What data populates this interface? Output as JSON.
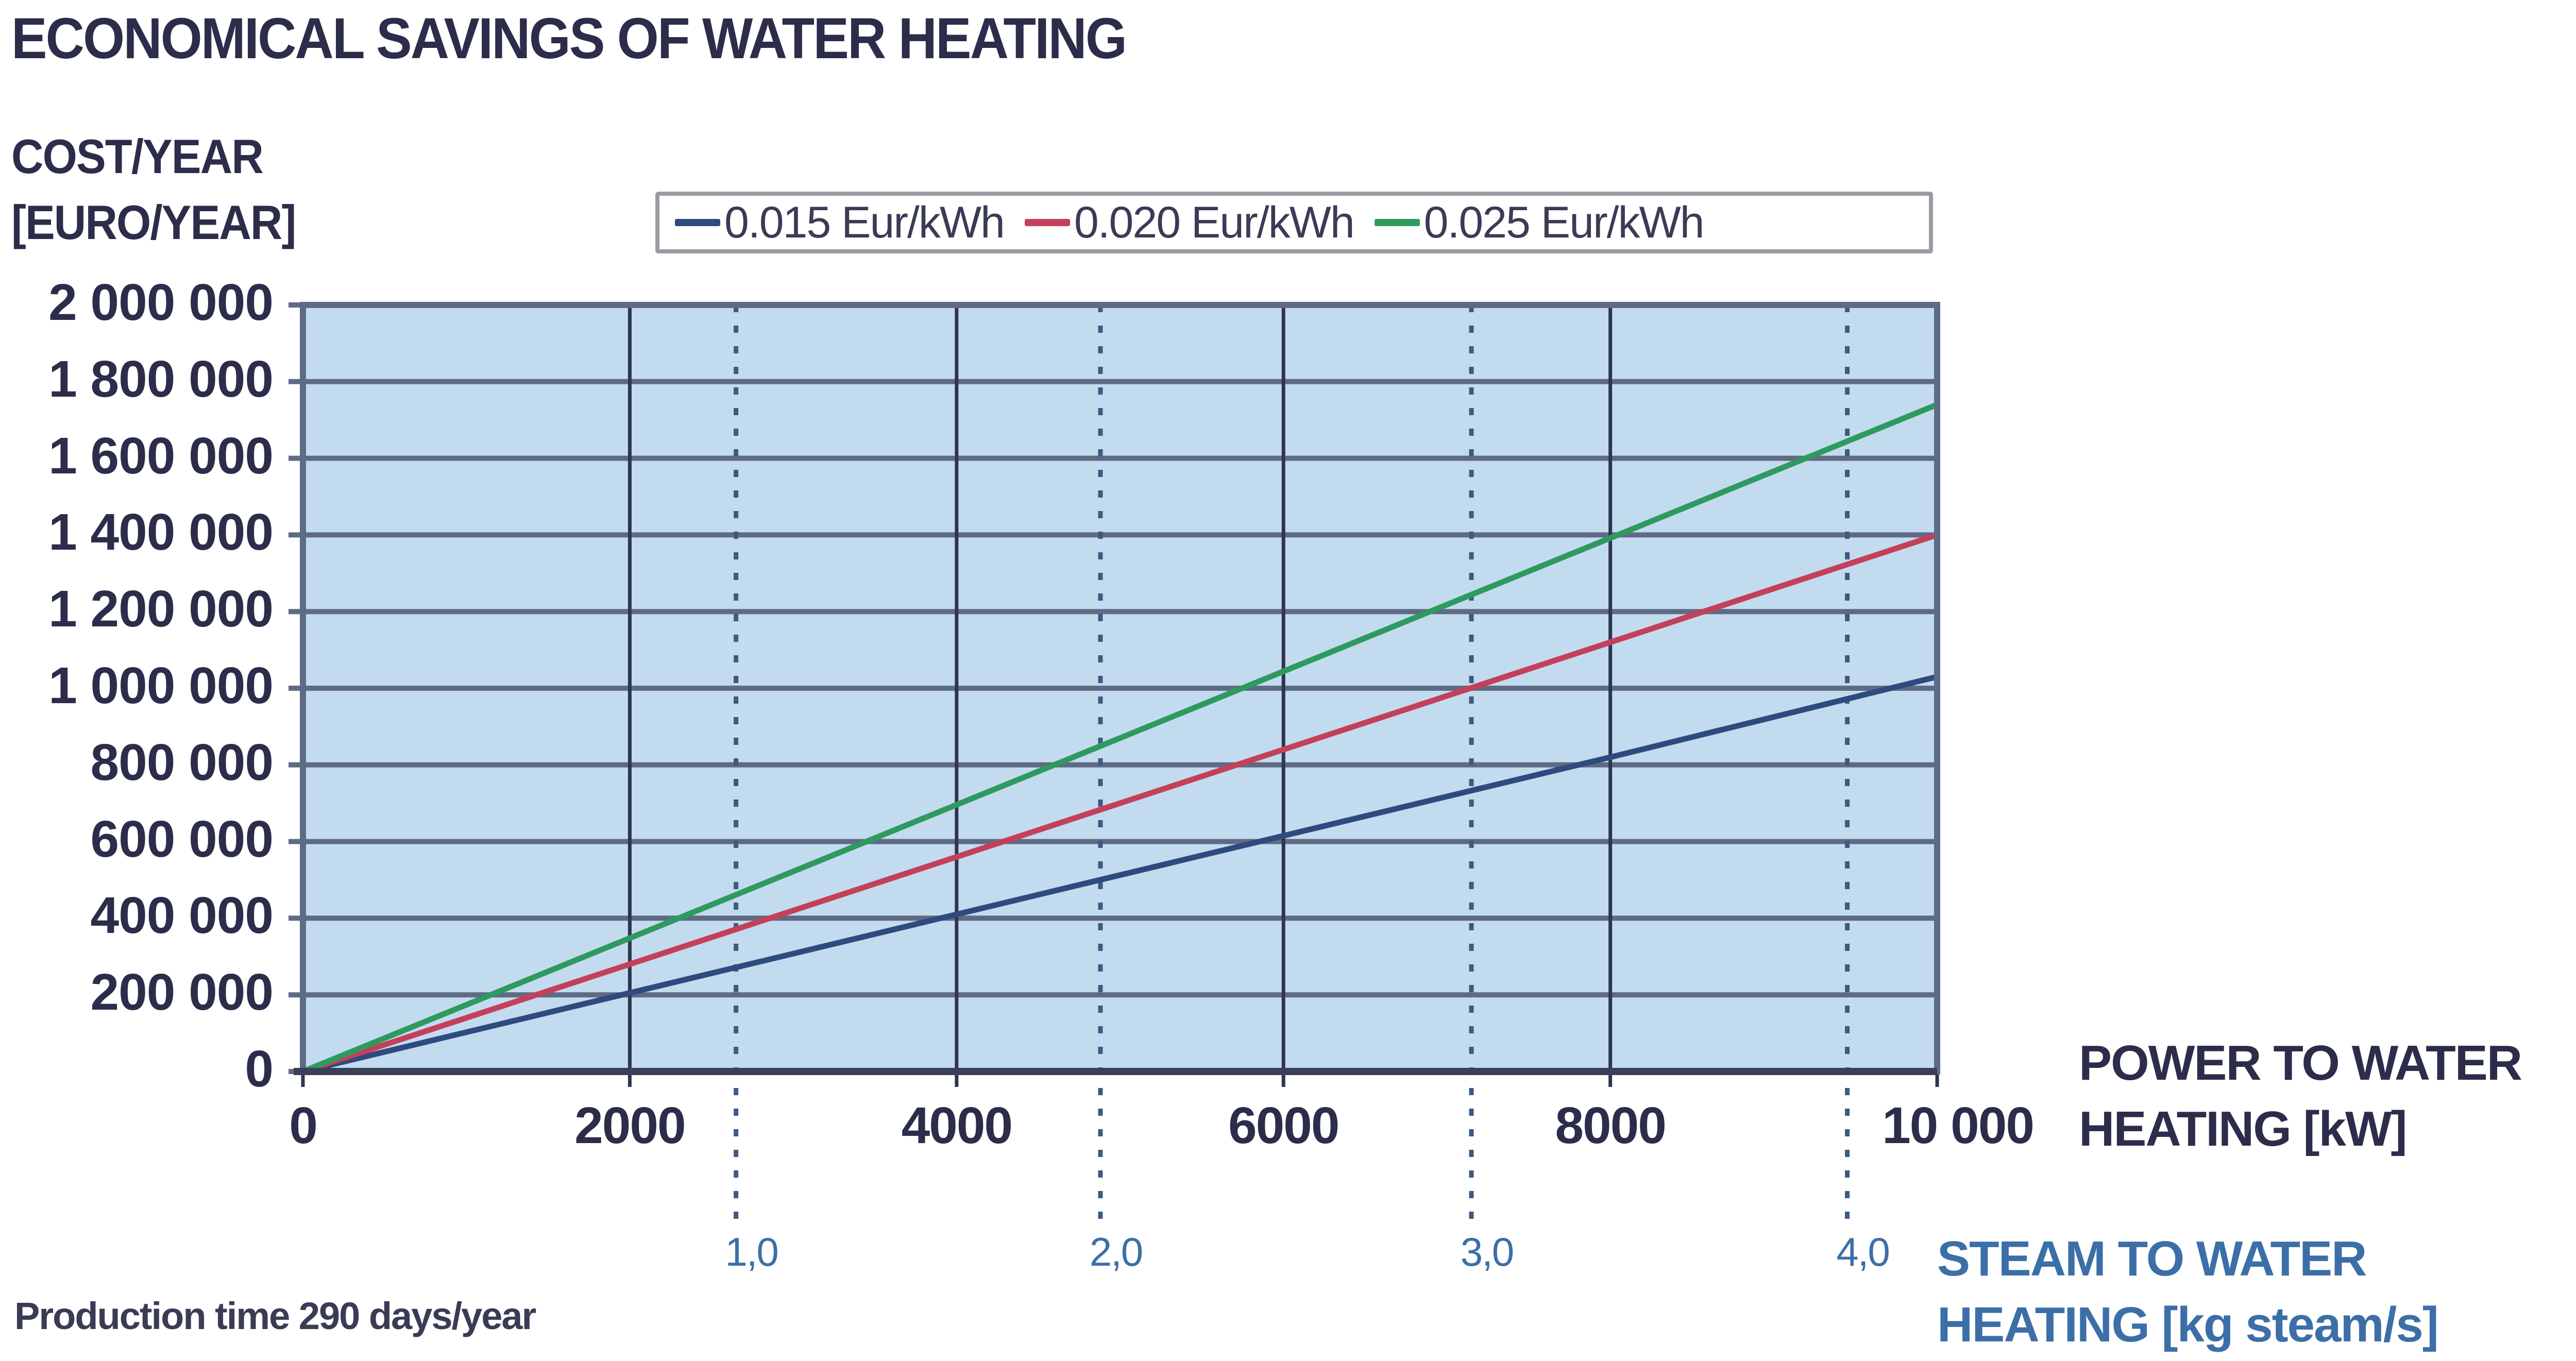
{
  "title": "ECONOMICAL SAVINGS OF WATER HEATING",
  "y_axis": {
    "label_line1": "COST/YEAR",
    "label_line2": "[EURO/YEAR]"
  },
  "x_axis": {
    "label_line1": "POWER TO WATER",
    "label_line2": "HEATING [kW]"
  },
  "x2_axis": {
    "label_line1": "STEAM TO WATER",
    "label_line2": "HEATING [kg steam/s]"
  },
  "footnote": "Production time 290 days/year",
  "legend": [
    {
      "label": "0.015 Eur/kWh",
      "color": "#2f4a7e"
    },
    {
      "label": "0.020 Eur/kWh",
      "color": "#c4405a"
    },
    {
      "label": "0.025 Eur/kWh",
      "color": "#2e9a5e"
    }
  ],
  "y_ticks": [
    "2 000 000",
    "1 800 000",
    "1 600 000",
    "1 400 000",
    "1 200 000",
    "1 000 000",
    "800 000",
    "600 000",
    "400 000",
    "200 000",
    "0"
  ],
  "x_ticks": [
    "0",
    "2000",
    "4000",
    "6000",
    "8000",
    "10 000"
  ],
  "x2_ticks": [
    "1,0",
    "2,0",
    "3,0",
    "4,0"
  ],
  "colors": {
    "plot_bg": "#c3dbef",
    "grid": "#5f6b85",
    "axis": "#3a3f5a",
    "secondary": "#3c6fa8"
  },
  "chart_data": {
    "type": "line",
    "title": "ECONOMICAL SAVINGS OF WATER HEATING",
    "xlabel": "POWER TO WATER HEATING [kW]",
    "ylabel": "COST/YEAR [EURO/YEAR]",
    "secondary_xlabel": "STEAM TO WATER HEATING [kg steam/s]",
    "secondary_x_ticks": [
      {
        "label": "1,0",
        "x_kw": 2650
      },
      {
        "label": "2,0",
        "x_kw": 4880
      },
      {
        "label": "3,0",
        "x_kw": 7150
      },
      {
        "label": "4,0",
        "x_kw": 9450
      }
    ],
    "xlim": [
      0,
      10000
    ],
    "ylim": [
      0,
      2000000
    ],
    "grid": true,
    "legend_position": "top",
    "x": [
      0,
      2000,
      4000,
      6000,
      8000,
      10000
    ],
    "series": [
      {
        "name": "0.015 Eur/kWh",
        "color": "#2f4a7e",
        "values": [
          0,
          205000,
          410000,
          615000,
          820000,
          1030000
        ]
      },
      {
        "name": "0.020 Eur/kWh",
        "color": "#c4405a",
        "values": [
          0,
          280000,
          560000,
          840000,
          1120000,
          1400000
        ]
      },
      {
        "name": "0.025 Eur/kWh",
        "color": "#2e9a5e",
        "values": [
          0,
          348000,
          696000,
          1044000,
          1392000,
          1740000
        ]
      }
    ],
    "annotations": [
      "Production time 290 days/year"
    ]
  }
}
